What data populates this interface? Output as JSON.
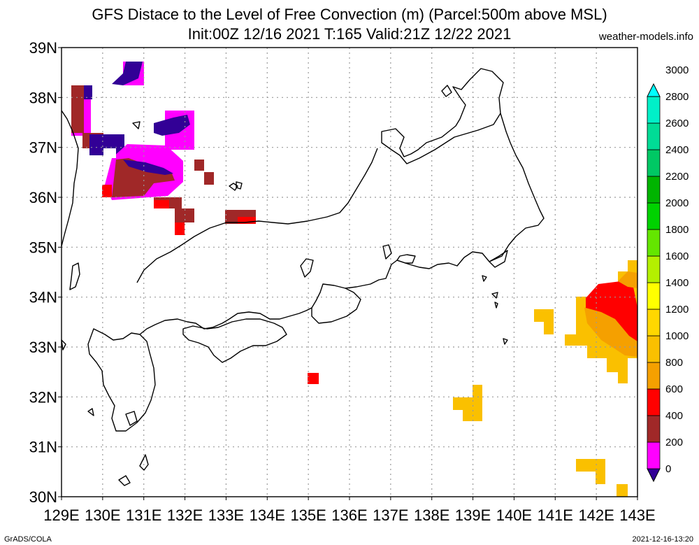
{
  "title_line1": "GFS Distace to the Level of Free Convection (m) (Parcel:500m above MSL)",
  "title_line2": "Init:00Z 12/16 2021 T:165 Valid:21Z 12/22 2021",
  "site": "weather-models.info",
  "footer_left": "GrADS/COLA",
  "footer_right": "2021-12-16-13:20",
  "lat_labels": [
    "39N",
    "38N",
    "37N",
    "36N",
    "35N",
    "34N",
    "33N",
    "32N",
    "31N",
    "30N"
  ],
  "lon_labels": [
    "129E",
    "130E",
    "131E",
    "132E",
    "133E",
    "134E",
    "135E",
    "136E",
    "137E",
    "138E",
    "139E",
    "140E",
    "141E",
    "142E",
    "143E"
  ],
  "colorbar": {
    "levels": [
      "0",
      "200",
      "400",
      "600",
      "800",
      "1000",
      "1200",
      "1400",
      "1600",
      "1800",
      "2000",
      "2200",
      "2400",
      "2600",
      "2800",
      "3000"
    ],
    "colors": [
      "#320096",
      "#ff00ff",
      "#a02828",
      "#ff0000",
      "#f5a000",
      "#fac000",
      "#ffd700",
      "#ffff00",
      "#b4f000",
      "#64e600",
      "#00d200",
      "#00b400",
      "#00c864",
      "#00dc96",
      "#00f0c8",
      "#00ffff"
    ]
  }
}
